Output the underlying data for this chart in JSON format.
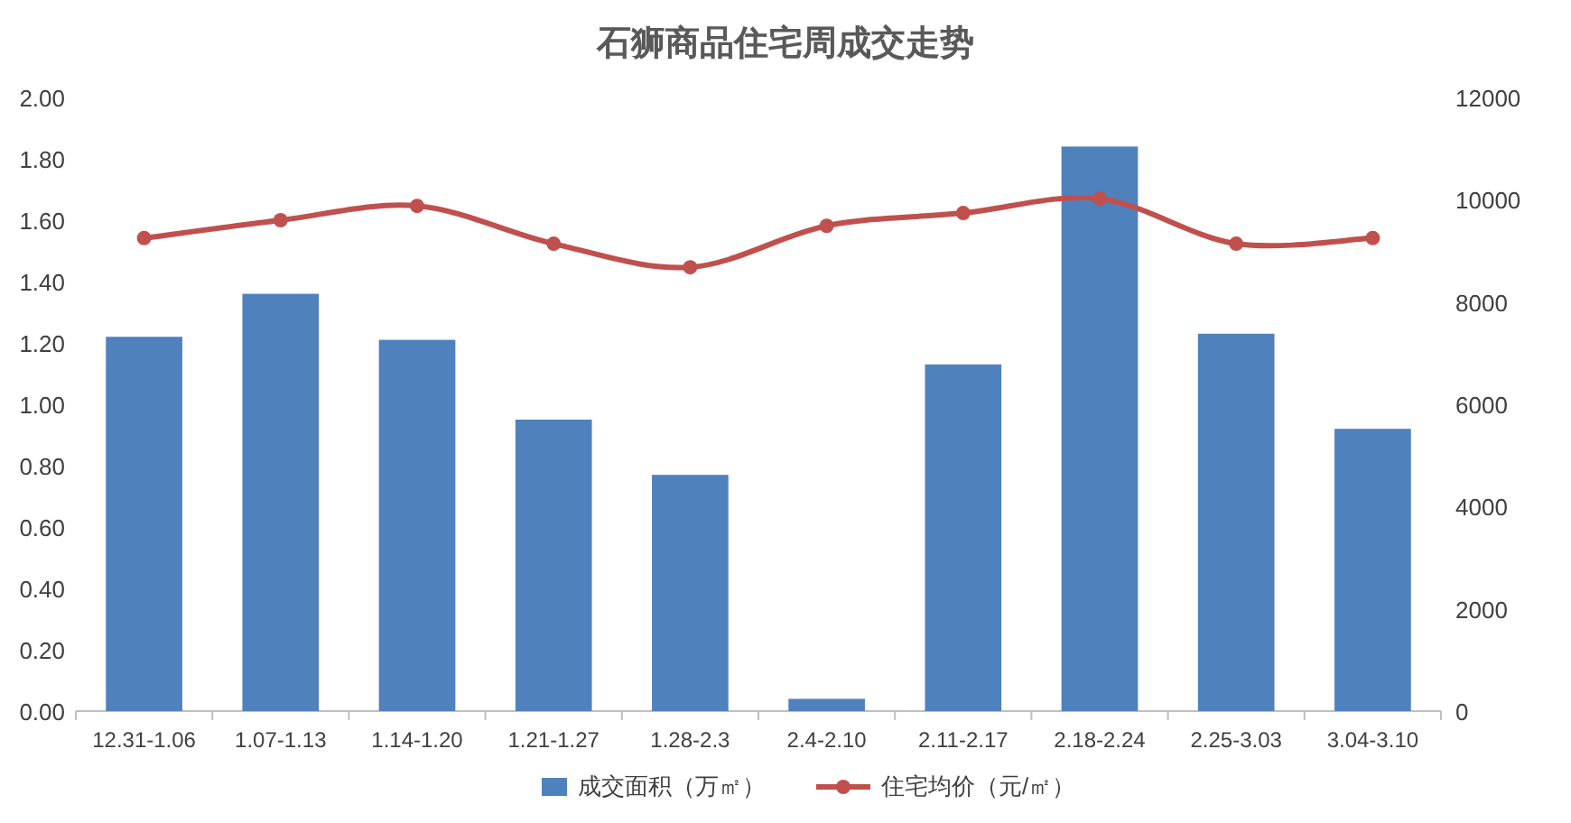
{
  "chart_data": {
    "type": "bar",
    "title": "石狮商品住宅周成交走势",
    "categories": [
      "12.31-1.06",
      "1.07-1.13",
      "1.14-1.20",
      "1.21-1.27",
      "1.28-2.3",
      "2.4-2.10",
      "2.11-2.17",
      "2.18-2.24",
      "2.25-3.03",
      "3.04-3.10"
    ],
    "series": [
      {
        "name": "成交面积（万㎡）",
        "color": "#4f81bd",
        "values": [
          1.22,
          1.36,
          1.21,
          0.95,
          0.77,
          0.04,
          1.13,
          1.84,
          1.23,
          0.92
        ]
      },
      {
        "name": "住宅均价（元/㎡）",
        "type": "line",
        "axis": "y2",
        "color": "#c0504d",
        "values": [
          9250,
          9600,
          9880,
          9140,
          8680,
          9490,
          9740,
          10020,
          9140,
          9250
        ]
      }
    ],
    "ylim": [
      0,
      2
    ],
    "yticks": [
      {
        "value": 0,
        "label": "0.00"
      },
      {
        "value": 0.2,
        "label": "0.20"
      },
      {
        "value": 0.4,
        "label": "0.40"
      },
      {
        "value": 0.6,
        "label": "0.60"
      },
      {
        "value": 0.8,
        "label": "0.80"
      },
      {
        "value": 1,
        "label": "1.00"
      },
      {
        "value": 1.2,
        "label": "1.20"
      },
      {
        "value": 1.4,
        "label": "1.40"
      },
      {
        "value": 1.6,
        "label": "1.60"
      },
      {
        "value": 1.8,
        "label": "1.80"
      },
      {
        "value": 2,
        "label": "2.00"
      }
    ],
    "y2lim": [
      0,
      12000
    ],
    "y2ticks": [
      0,
      2000,
      4000,
      6000,
      8000,
      10000,
      12000
    ],
    "marker": "circle",
    "legend": "bottom",
    "grid": false
  }
}
